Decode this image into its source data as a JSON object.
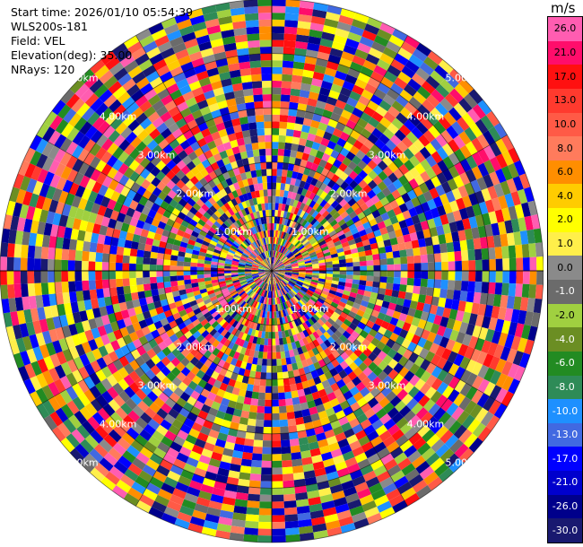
{
  "info": {
    "start_time": "Start time: 2026/01/10 05:54:39",
    "instrument": "WLS200s-181",
    "field": "Field: VEL",
    "elevation": "Elevation(deg): 35.00",
    "nrays": "NRays: 120"
  },
  "colorbar": {
    "unit": "m/s",
    "levels": [
      {
        "label": "26.0",
        "color": "#ff5db1"
      },
      {
        "label": "21.0",
        "color": "#ff0d6b"
      },
      {
        "label": "17.0",
        "color": "#ff1010"
      },
      {
        "label": "13.0",
        "color": "#ff3a2e"
      },
      {
        "label": "10.0",
        "color": "#ff5a46"
      },
      {
        "label": "8.0",
        "color": "#ff7b5c"
      },
      {
        "label": "6.0",
        "color": "#ff8e00"
      },
      {
        "label": "4.0",
        "color": "#ffcc00"
      },
      {
        "label": "2.0",
        "color": "#ffff00"
      },
      {
        "label": "1.0",
        "color": "#ffef4a"
      },
      {
        "label": "0.0",
        "color": "#8a8a8a"
      },
      {
        "label": "-1.0",
        "color": "#6b6b6b"
      },
      {
        "label": "-2.0",
        "color": "#a0d040"
      },
      {
        "label": "-4.0",
        "color": "#6b8e23"
      },
      {
        "label": "-6.0",
        "color": "#228b22"
      },
      {
        "label": "-8.0",
        "color": "#2e8b57"
      },
      {
        "label": "-10.0",
        "color": "#1e90ff"
      },
      {
        "label": "-13.0",
        "color": "#4169e1"
      },
      {
        "label": "-17.0",
        "color": "#0000ff"
      },
      {
        "label": "-21.0",
        "color": "#0000cd"
      },
      {
        "label": "-26.0",
        "color": "#00008b"
      },
      {
        "label": "-30.0",
        "color": "#191970"
      }
    ]
  },
  "chart_data": {
    "type": "heatmap",
    "projection": "polar PPI",
    "field": "VEL",
    "units": "m/s",
    "nrays": 120,
    "range_gates": 40,
    "max_range_km": 5.0,
    "range_rings_km": [
      1.0,
      2.0,
      3.0,
      4.0,
      5.0
    ],
    "ring_labels": [
      "1.00km",
      "2.00km",
      "3.00km",
      "4.00km",
      "5.00km"
    ],
    "grid": true,
    "values_note": "noisy velocity field; colors sampled from colorbar levels"
  }
}
